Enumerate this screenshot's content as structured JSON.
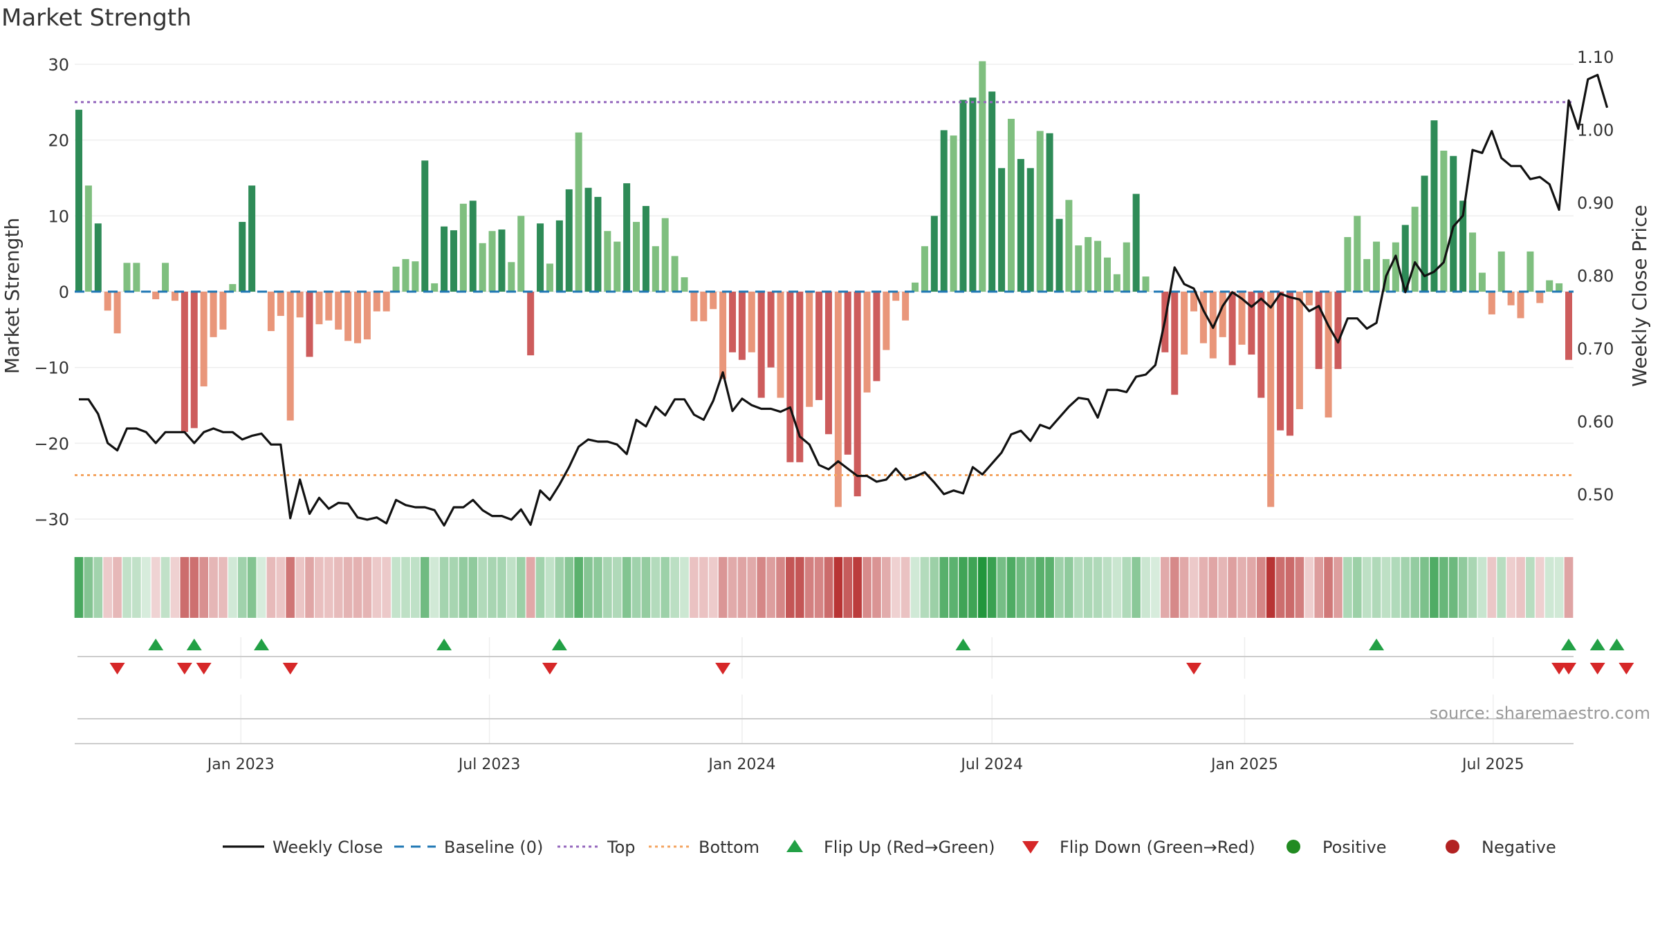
{
  "title": "Market Strength",
  "source": "source: sharemaestro.com",
  "chart_data": {
    "type": "bar",
    "x_start": "2022-09-05",
    "x_interval_days": 7,
    "strength": [
      24,
      14,
      9,
      -2.5,
      -5.5,
      3.8,
      3.8,
      0,
      -1,
      3.8,
      -1.2,
      -18.5,
      -18,
      -12.5,
      -6,
      -5,
      1,
      9.2,
      14,
      0,
      -5.2,
      -3.2,
      -17,
      -3.4,
      -8.6,
      -4.3,
      -3.8,
      -5,
      -6.5,
      -6.8,
      -6.3,
      -2.6,
      -2.6,
      3.3,
      4.3,
      4,
      17.3,
      1.1,
      8.6,
      8.1,
      11.6,
      12,
      6.4,
      8,
      8.2,
      3.9,
      10,
      -8.4,
      9,
      3.7,
      9.4,
      13.5,
      21,
      13.7,
      12.5,
      8,
      6.6,
      14.3,
      9.2,
      11.3,
      6,
      9.7,
      4.7,
      1.9,
      -3.9,
      -3.9,
      -2.3,
      -11.5,
      -8,
      -9,
      -8,
      -14,
      -10,
      -14,
      -22.5,
      -22.5,
      -15.2,
      -14.3,
      -18.8,
      -28.4,
      -21.5,
      -27,
      -13.3,
      -11.8,
      -7.7,
      -1.2,
      -3.8,
      1.2,
      6,
      10,
      21.3,
      20.6,
      25.3,
      25.6,
      30.4,
      26.4,
      16.3,
      22.8,
      17.5,
      16.3,
      21.2,
      20.9,
      9.6,
      12.1,
      6.1,
      7.2,
      6.7,
      4.5,
      2.3,
      6.5,
      12.9,
      2,
      0,
      -8,
      -13.6,
      -8.3,
      -2.6,
      -6.8,
      -8.8,
      -6,
      -9.7,
      -7,
      -8.3,
      -14,
      -28.4,
      -18.3,
      -19,
      -15.5,
      -1.8,
      -10.2,
      -16.6,
      -10.2,
      7.2,
      10,
      4.3,
      6.6,
      4.3,
      6.5,
      8.8,
      11.2,
      15.3,
      22.6,
      18.6,
      17.9,
      12,
      7.8,
      2.5,
      -3,
      5.3,
      -1.8,
      -3.5,
      5.3,
      -1.5,
      1.5,
      1.1,
      -9
    ],
    "close": [
      0.63,
      0.63,
      0.61,
      0.57,
      0.56,
      0.59,
      0.59,
      0.585,
      0.57,
      0.585,
      0.585,
      0.585,
      0.57,
      0.585,
      0.59,
      0.585,
      0.585,
      0.575,
      0.58,
      0.583,
      0.568,
      0.568,
      0.467,
      0.52,
      0.473,
      0.495,
      0.48,
      0.488,
      0.487,
      0.468,
      0.465,
      0.468,
      0.46,
      0.492,
      0.485,
      0.482,
      0.482,
      0.478,
      0.457,
      0.482,
      0.482,
      0.492,
      0.478,
      0.47,
      0.47,
      0.465,
      0.479,
      0.458,
      0.505,
      0.492,
      0.513,
      0.537,
      0.565,
      0.575,
      0.572,
      0.572,
      0.568,
      0.555,
      0.602,
      0.593,
      0.62,
      0.608,
      0.63,
      0.63,
      0.609,
      0.602,
      0.628,
      0.667,
      0.614,
      0.631,
      0.622,
      0.617,
      0.617,
      0.613,
      0.619,
      0.579,
      0.568,
      0.54,
      0.534,
      0.545,
      0.535,
      0.525,
      0.525,
      0.517,
      0.52,
      0.535,
      0.52,
      0.524,
      0.53,
      0.516,
      0.5,
      0.505,
      0.501,
      0.537,
      0.527,
      0.542,
      0.557,
      0.582,
      0.587,
      0.573,
      0.595,
      0.59,
      0.605,
      0.62,
      0.632,
      0.63,
      0.605,
      0.643,
      0.643,
      0.64,
      0.661,
      0.664,
      0.677,
      0.738,
      0.811,
      0.788,
      0.782,
      0.752,
      0.728,
      0.758,
      0.777,
      0.768,
      0.757,
      0.768,
      0.756,
      0.775,
      0.77,
      0.767,
      0.751,
      0.758,
      0.731,
      0.708,
      0.741,
      0.741,
      0.727,
      0.735,
      0.799,
      0.827,
      0.777,
      0.818,
      0.799,
      0.805,
      0.818,
      0.867,
      0.882,
      0.972,
      0.968,
      0.998,
      0.961,
      0.95,
      0.95,
      0.932,
      0.935,
      0.925,
      0.89,
      1.04,
      1.001,
      1.069,
      1.075,
      1.03
    ],
    "flip_up_x": [
      "2022-10-31",
      "2022-11-28",
      "2023-01-16",
      "2023-05-29",
      "2023-08-21",
      "2024-06-10",
      "2025-04-07",
      "2025-08-25",
      "2025-09-15",
      "2025-09-29"
    ],
    "flip_down_x": [
      "2022-10-03",
      "2022-11-21",
      "2022-12-05",
      "2023-02-06",
      "2023-08-14",
      "2023-12-18",
      "2024-11-25",
      "2025-08-18",
      "2025-08-25",
      "2025-09-15",
      "2025-10-06"
    ],
    "top_line": 25,
    "bottom_line": -24.2,
    "baseline": 0,
    "ylim_left": [
      -32,
      31
    ],
    "ylim_right": [
      0.445,
      1.1
    ],
    "ylabel_left": "Market Strength",
    "ylabel_right": "Weekly Close Price",
    "yticks_left": [
      "30",
      "20",
      "10",
      "0",
      "−10",
      "−20",
      "−30"
    ],
    "yticks_right": [
      "1.10",
      "1.00",
      "0.90",
      "0.80",
      "0.70",
      "0.60",
      "0.50"
    ],
    "xticks": [
      {
        "date": "2023-01-01",
        "label": "Jan 2023"
      },
      {
        "date": "2023-07-01",
        "label": "Jul 2023"
      },
      {
        "date": "2024-01-01",
        "label": "Jan 2024"
      },
      {
        "date": "2024-07-01",
        "label": "Jul 2024"
      },
      {
        "date": "2025-01-01",
        "label": "Jan 2025"
      },
      {
        "date": "2025-07-01",
        "label": "Jul 2025"
      }
    ],
    "legend": [
      {
        "label": "Weekly Close",
        "kind": "line"
      },
      {
        "label": "Baseline (0)",
        "kind": "dash"
      },
      {
        "label": "Top",
        "kind": "dot-purple"
      },
      {
        "label": "Bottom",
        "kind": "dot-orange"
      },
      {
        "label": "Flip Up (Red→Green)",
        "kind": "tri-up"
      },
      {
        "label": "Flip Down (Green→Red)",
        "kind": "tri-down"
      },
      {
        "label": "Positive",
        "kind": "circle-green"
      },
      {
        "label": "Negative",
        "kind": "circle-red"
      }
    ],
    "colors": {
      "pos_strong": "#2e8b57",
      "pos_light": "#7fbf7f",
      "neg_strong": "#cd5c5c",
      "neg_light": "#e9967a",
      "close": "#111111",
      "baseline": "#1f77b4",
      "top": "#9467bd",
      "bottom": "#f4a460",
      "flip_up": "#22a045",
      "flip_down": "#d62728",
      "positive": "#228b22",
      "negative": "#b22222"
    }
  }
}
